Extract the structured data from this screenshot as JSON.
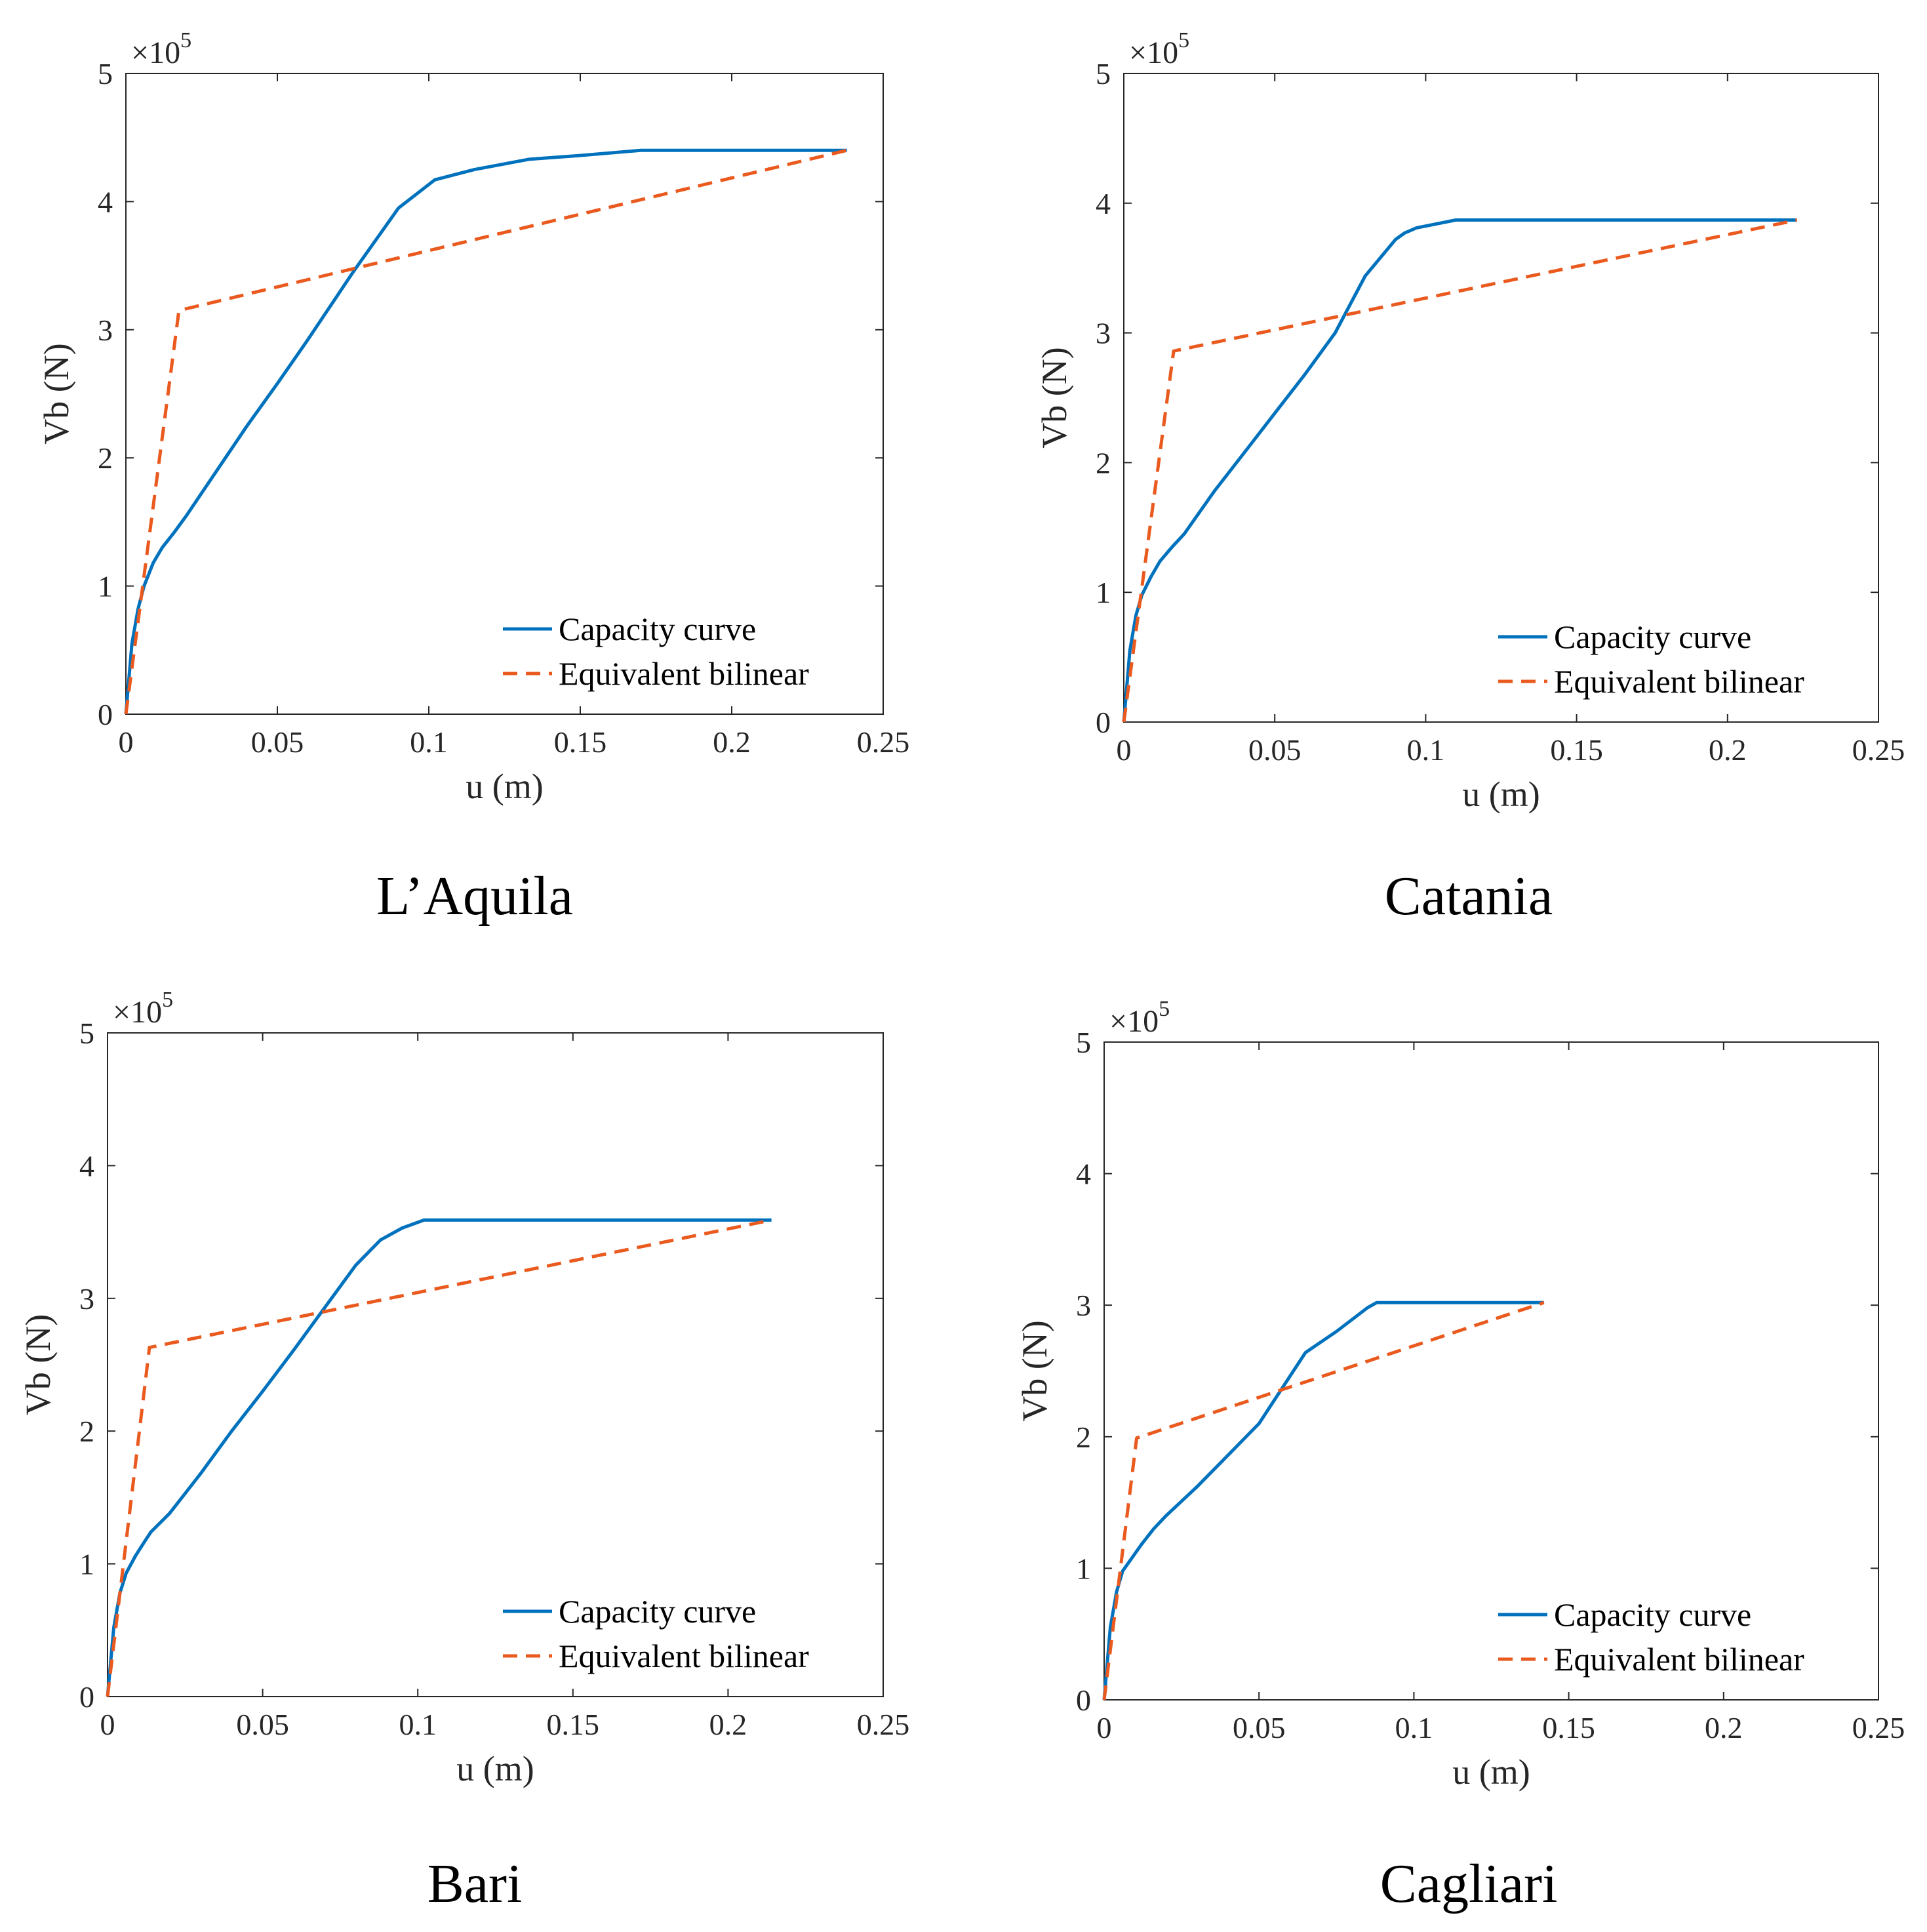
{
  "chart_data": [
    {
      "type": "line",
      "caption": "L’Aquila",
      "xlabel": "u (m)",
      "ylabel": "Vb (N)",
      "y_multiplier": "×10",
      "y_exponent": "5",
      "xlim": [
        0,
        0.25
      ],
      "ylim": [
        0,
        5
      ],
      "xticks": [
        "0",
        "0.05",
        "0.1",
        "0.15",
        "0.2",
        "0.25"
      ],
      "yticks": [
        "0",
        "1",
        "2",
        "3",
        "4",
        "5"
      ],
      "legend": {
        "position": "bottom-right",
        "entries": [
          "Capacity curve",
          "Equivalent bilinear"
        ]
      },
      "series": [
        {
          "name": "Capacity curve",
          "color": "#0072BD",
          "style": "solid",
          "x": [
            0,
            0.002,
            0.004,
            0.006,
            0.009,
            0.012,
            0.016,
            0.02,
            0.03,
            0.04,
            0.05,
            0.06,
            0.075,
            0.09,
            0.102,
            0.115,
            0.133,
            0.15,
            0.17,
            0.2,
            0.238
          ],
          "y": [
            0,
            0.55,
            0.82,
            1.0,
            1.18,
            1.3,
            1.42,
            1.55,
            1.9,
            2.25,
            2.58,
            2.92,
            3.45,
            3.95,
            4.17,
            4.25,
            4.33,
            4.36,
            4.4,
            4.4,
            4.4
          ]
        },
        {
          "name": "Equivalent bilinear",
          "color": "#EA5A1F",
          "style": "dashed",
          "x": [
            0,
            0.0175,
            0.238
          ],
          "y": [
            0,
            3.15,
            4.4
          ]
        }
      ]
    },
    {
      "type": "line",
      "caption": "Catania",
      "xlabel": "u (m)",
      "ylabel": "Vb (N)",
      "y_multiplier": "×10",
      "y_exponent": "5",
      "xlim": [
        0,
        0.25
      ],
      "ylim": [
        0,
        5
      ],
      "xticks": [
        "0",
        "0.05",
        "0.1",
        "0.15",
        "0.2",
        "0.25"
      ],
      "yticks": [
        "0",
        "1",
        "2",
        "3",
        "4",
        "5"
      ],
      "legend": {
        "position": "bottom-right",
        "entries": [
          "Capacity curve",
          "Equivalent bilinear"
        ]
      },
      "series": [
        {
          "name": "Capacity curve",
          "color": "#0072BD",
          "style": "solid",
          "x": [
            0,
            0.002,
            0.004,
            0.006,
            0.009,
            0.012,
            0.016,
            0.02,
            0.03,
            0.04,
            0.05,
            0.06,
            0.07,
            0.08,
            0.09,
            0.093,
            0.097,
            0.11,
            0.15,
            0.223
          ],
          "y": [
            0,
            0.55,
            0.82,
            0.98,
            1.12,
            1.24,
            1.35,
            1.45,
            1.78,
            2.08,
            2.38,
            2.68,
            3.0,
            3.44,
            3.72,
            3.77,
            3.81,
            3.87,
            3.87,
            3.87
          ]
        },
        {
          "name": "Equivalent bilinear",
          "color": "#EA5A1F",
          "style": "dashed",
          "x": [
            0,
            0.0165,
            0.223
          ],
          "y": [
            0,
            2.86,
            3.87
          ]
        }
      ]
    },
    {
      "type": "line",
      "caption": "Bari",
      "xlabel": "u (m)",
      "ylabel": "Vb (N)",
      "y_multiplier": "×10",
      "y_exponent": "5",
      "xlim": [
        0,
        0.25
      ],
      "ylim": [
        0,
        5
      ],
      "xticks": [
        "0",
        "0.05",
        "0.1",
        "0.15",
        "0.2",
        "0.25"
      ],
      "yticks": [
        "0",
        "1",
        "2",
        "3",
        "4",
        "5"
      ],
      "legend": {
        "position": "bottom-right",
        "entries": [
          "Capacity curve",
          "Equivalent bilinear"
        ]
      },
      "series": [
        {
          "name": "Capacity curve",
          "color": "#0072BD",
          "style": "solid",
          "x": [
            0,
            0.002,
            0.004,
            0.006,
            0.009,
            0.012,
            0.014,
            0.02,
            0.03,
            0.04,
            0.05,
            0.06,
            0.07,
            0.08,
            0.088,
            0.095,
            0.102,
            0.13,
            0.214
          ],
          "y": [
            0,
            0.52,
            0.78,
            0.93,
            1.06,
            1.17,
            1.24,
            1.38,
            1.68,
            2.0,
            2.3,
            2.61,
            2.93,
            3.25,
            3.44,
            3.53,
            3.59,
            3.59,
            3.59
          ]
        },
        {
          "name": "Equivalent bilinear",
          "color": "#EA5A1F",
          "style": "dashed",
          "x": [
            0,
            0.0135,
            0.214
          ],
          "y": [
            0,
            2.63,
            3.59
          ]
        }
      ]
    },
    {
      "type": "line",
      "caption": "Cagliari",
      "xlabel": "u (m)",
      "ylabel": "Vb (N)",
      "y_multiplier": "×10",
      "y_exponent": "5",
      "xlim": [
        0,
        0.25
      ],
      "ylim": [
        0,
        5
      ],
      "xticks": [
        "0",
        "0.05",
        "0.1",
        "0.15",
        "0.2",
        "0.25"
      ],
      "yticks": [
        "0",
        "1",
        "2",
        "3",
        "4",
        "5"
      ],
      "legend": {
        "position": "bottom-right",
        "entries": [
          "Capacity curve",
          "Equivalent bilinear"
        ]
      },
      "series": [
        {
          "name": "Capacity curve",
          "color": "#0072BD",
          "style": "solid",
          "x": [
            0,
            0.002,
            0.004,
            0.006,
            0.009,
            0.012,
            0.016,
            0.02,
            0.03,
            0.04,
            0.05,
            0.065,
            0.075,
            0.085,
            0.088,
            0.1,
            0.142
          ],
          "y": [
            0,
            0.55,
            0.82,
            0.98,
            1.08,
            1.18,
            1.3,
            1.4,
            1.62,
            1.86,
            2.1,
            2.64,
            2.8,
            2.98,
            3.02,
            3.02,
            3.02
          ]
        },
        {
          "name": "Equivalent bilinear",
          "color": "#EA5A1F",
          "style": "dashed",
          "x": [
            0,
            0.0105,
            0.142
          ],
          "y": [
            0,
            1.99,
            3.02
          ]
        }
      ]
    }
  ]
}
